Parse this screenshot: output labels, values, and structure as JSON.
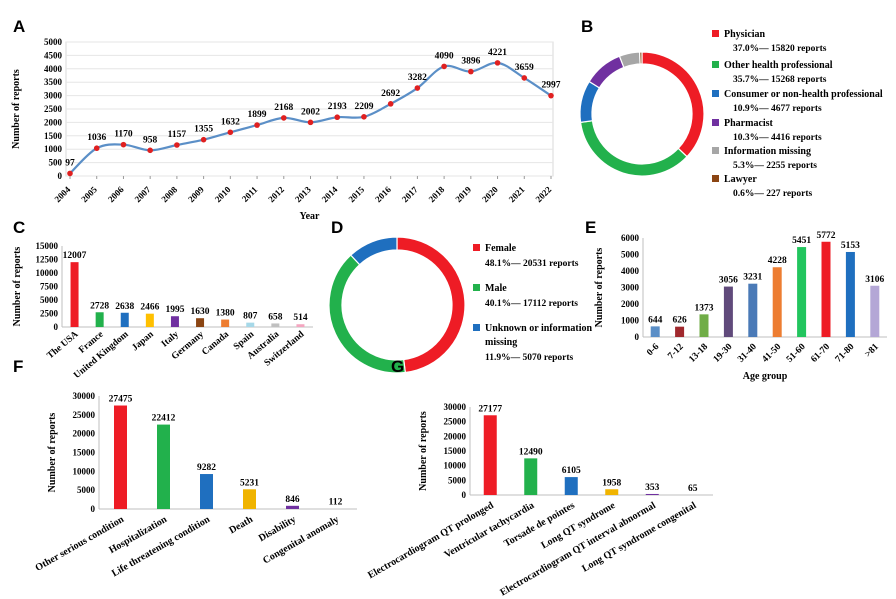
{
  "panels": {
    "A": "A",
    "B": "B",
    "C": "C",
    "D": "D",
    "E": "E",
    "F": "F",
    "G": "G"
  },
  "chart_data": [
    {
      "id": "A",
      "type": "line",
      "x": [
        "2004",
        "2005",
        "2006",
        "2007",
        "2008",
        "2009",
        "2010",
        "2011",
        "2012",
        "2013",
        "2014",
        "2015",
        "2016",
        "2017",
        "2018",
        "2019",
        "2020",
        "2021",
        "2022"
      ],
      "values": [
        97,
        1036,
        1170,
        958,
        1157,
        1355,
        1632,
        1899,
        2168,
        2002,
        2193,
        2209,
        2692,
        3282,
        4090,
        3896,
        4221,
        3659,
        2997
      ],
      "yticks": [
        0,
        500,
        1000,
        1500,
        2000,
        2500,
        3000,
        3500,
        4000,
        4500,
        5000
      ],
      "ylim": [
        0,
        5000
      ],
      "xlabel": "Year",
      "ylabel": "Number of reports",
      "line_color": "#5b8fc7",
      "point_color": "#e02020"
    },
    {
      "id": "B",
      "type": "pie",
      "slices": [
        {
          "name": "Physician",
          "pct": "37.0%",
          "reports": "15820 reports",
          "value": 37.0,
          "color": "#ee1c25"
        },
        {
          "name": "Other health professional",
          "pct": "35.7%",
          "reports": "15268 reports",
          "value": 35.7,
          "color": "#22b14c"
        },
        {
          "name": "Consumer or non-health professional",
          "pct": "10.9%",
          "reports": "4677 reports",
          "value": 10.9,
          "color": "#1f6fbf"
        },
        {
          "name": "Pharmacist",
          "pct": "10.3%",
          "reports": "4416 reports",
          "value": 10.3,
          "color": "#7030a0"
        },
        {
          "name": "Information missing",
          "pct": "5.3%",
          "reports": "2255 reports",
          "value": 5.3,
          "color": "#a6a6a6"
        },
        {
          "name": "Lawyer",
          "pct": "0.6%",
          "reports": "227 reports",
          "value": 0.6,
          "color": "#8b4513"
        }
      ]
    },
    {
      "id": "C",
      "type": "bar",
      "categories": [
        "The USA",
        "France",
        "United Kingdom",
        "Japan",
        "Italy",
        "Germany",
        "Canada",
        "Spain",
        "Australia",
        "Switzerland"
      ],
      "values": [
        12007,
        2728,
        2638,
        2466,
        1995,
        1630,
        1380,
        807,
        658,
        514
      ],
      "colors": [
        "#ee1c25",
        "#22b14c",
        "#1f6fbf",
        "#ffc000",
        "#7030a0",
        "#8b4513",
        "#ed7d31",
        "#a6d8e8",
        "#c0c0c0",
        "#f4a6c0"
      ],
      "yticks": [
        0,
        2500,
        5000,
        7500,
        10000,
        12500,
        15000
      ],
      "ylim": [
        0,
        15000
      ],
      "ylabel": "Number of reports"
    },
    {
      "id": "D",
      "type": "pie",
      "slices": [
        {
          "name": "Female",
          "pct": "48.1%",
          "reports": "20531 reports",
          "value": 48.1,
          "color": "#ee1c25"
        },
        {
          "name": "Male",
          "pct": "40.1%",
          "reports": "17112 reports",
          "value": 40.1,
          "color": "#22b14c"
        },
        {
          "name": "Unknown or information",
          "name2": "missing",
          "pct": "11.9%",
          "reports": "5070 reports",
          "value": 11.9,
          "color": "#1f6fbf"
        }
      ]
    },
    {
      "id": "E",
      "type": "bar",
      "categories": [
        "0-6",
        "7-12",
        "13-18",
        "19-30",
        "31-40",
        "41-50",
        "51-60",
        "61-70",
        "71-80",
        ">81"
      ],
      "values": [
        644,
        626,
        1373,
        3056,
        3231,
        4228,
        5451,
        5772,
        5153,
        3106
      ],
      "colors": [
        "#5b8fc7",
        "#a0282d",
        "#70ad47",
        "#604a7b",
        "#4a7ab7",
        "#ed7d31",
        "#22c55e",
        "#ee1c25",
        "#1f6fbf",
        "#b4a7d6"
      ],
      "yticks": [
        0,
        1000,
        2000,
        3000,
        4000,
        5000,
        6000
      ],
      "ylim": [
        0,
        6000
      ],
      "xlabel": "Age group",
      "ylabel": "Number of reports"
    },
    {
      "id": "F",
      "type": "bar",
      "categories": [
        "Other serious condition",
        "Hospitalization",
        "Life threatening condition",
        "Death",
        "Disability",
        "Congenital anomaly"
      ],
      "values": [
        27475,
        22412,
        9282,
        5231,
        846,
        112
      ],
      "colors": [
        "#ee1c25",
        "#22b14c",
        "#1f6fbf",
        "#f0b400",
        "#7030a0",
        "#c0c0c0"
      ],
      "yticks": [
        0,
        5000,
        10000,
        15000,
        20000,
        25000,
        30000
      ],
      "ylim": [
        0,
        30000
      ],
      "ylabel": "Number of reports"
    },
    {
      "id": "G",
      "type": "bar",
      "categories": [
        "Electrocardiogram QT prolonged",
        "Ventricular tachycardia",
        "Torsade de pointes",
        "Long QT syndrome",
        "Electrocardiogram QT interval abnormal",
        "Long QT syndrome congenital"
      ],
      "values": [
        27177,
        12490,
        6105,
        1958,
        353,
        65
      ],
      "colors": [
        "#ee1c25",
        "#22b14c",
        "#1f6fbf",
        "#f0b400",
        "#7030a0",
        "#c0c0c0"
      ],
      "yticks": [
        0,
        5000,
        10000,
        15000,
        20000,
        25000,
        30000
      ],
      "ylim": [
        0,
        30000
      ],
      "ylabel": "Number of reports"
    }
  ]
}
